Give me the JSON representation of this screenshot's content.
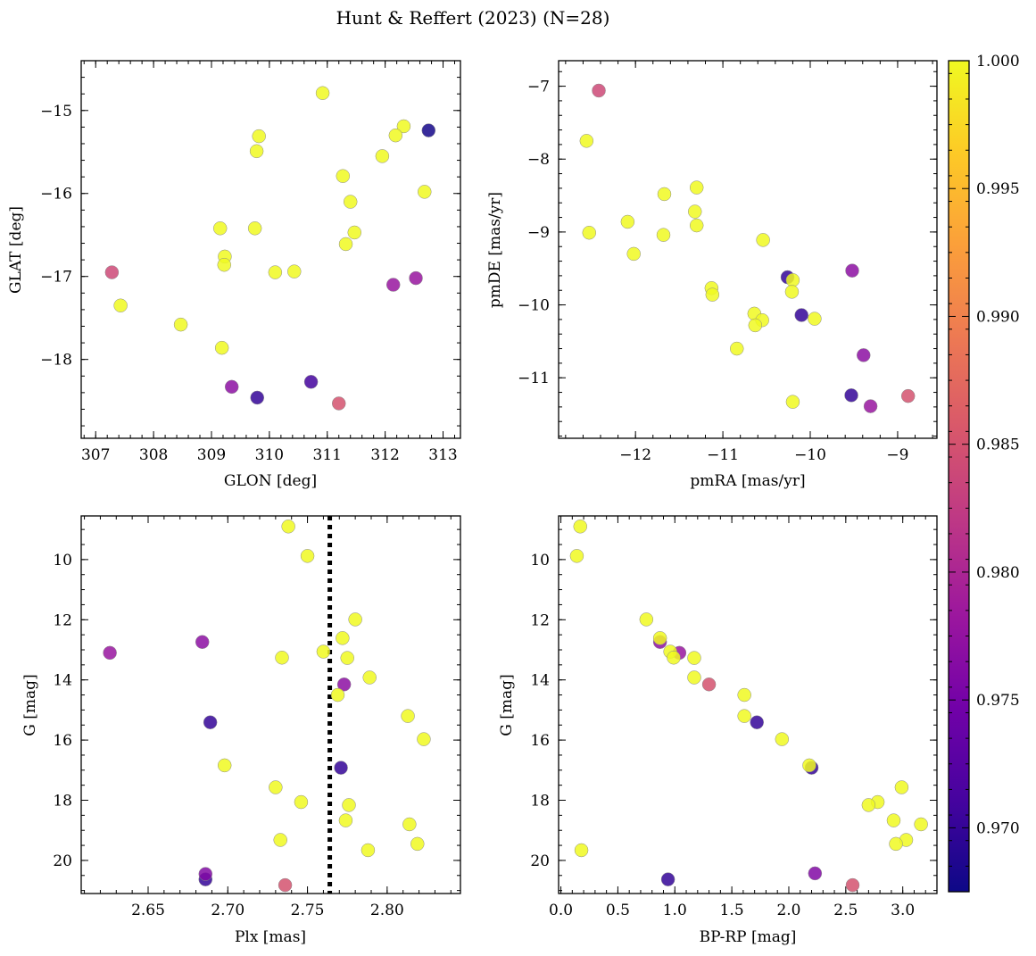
{
  "chart_data": [
    {
      "type": "scatter",
      "title": "Hunt & Reffert (2023) (N=28)",
      "xlabel": "GLON [deg]",
      "ylabel": "GLAT [deg]",
      "xlim": [
        306.75,
        313.3
      ],
      "ylim": [
        -18.95,
        -14.4
      ],
      "x_inverted": false,
      "y_inverted": false,
      "xticks": [
        307,
        308,
        309,
        310,
        311,
        312,
        313
      ],
      "yticks": [
        -18,
        -17,
        -16,
        -15
      ],
      "xtick_labels": [
        "307",
        "308",
        "309",
        "310",
        "311",
        "312",
        "313"
      ],
      "ytick_labels": [
        "−18",
        "−17",
        "−16",
        "−15"
      ],
      "points": [
        {
          "x": 310.92,
          "y": -14.79,
          "c": 1.0
        },
        {
          "x": 312.75,
          "y": -15.24,
          "c": 0.968
        },
        {
          "x": 312.32,
          "y": -15.19,
          "c": 1.0
        },
        {
          "x": 312.18,
          "y": -15.3,
          "c": 1.0
        },
        {
          "x": 309.82,
          "y": -15.31,
          "c": 1.0
        },
        {
          "x": 309.78,
          "y": -15.49,
          "c": 1.0
        },
        {
          "x": 311.95,
          "y": -15.55,
          "c": 1.0
        },
        {
          "x": 311.27,
          "y": -15.79,
          "c": 1.0
        },
        {
          "x": 312.68,
          "y": -15.98,
          "c": 1.0
        },
        {
          "x": 311.4,
          "y": -16.1,
          "c": 1.0
        },
        {
          "x": 309.15,
          "y": -16.42,
          "c": 1.0
        },
        {
          "x": 309.75,
          "y": -16.42,
          "c": 1.0
        },
        {
          "x": 311.47,
          "y": -16.47,
          "c": 1.0
        },
        {
          "x": 311.32,
          "y": -16.61,
          "c": 1.0
        },
        {
          "x": 309.23,
          "y": -16.76,
          "c": 1.0
        },
        {
          "x": 309.22,
          "y": -16.86,
          "c": 1.0
        },
        {
          "x": 310.1,
          "y": -16.95,
          "c": 1.0
        },
        {
          "x": 310.43,
          "y": -16.94,
          "c": 1.0
        },
        {
          "x": 307.28,
          "y": -16.95,
          "c": 0.984
        },
        {
          "x": 312.53,
          "y": -17.02,
          "c": 0.978
        },
        {
          "x": 312.14,
          "y": -17.1,
          "c": 0.978
        },
        {
          "x": 307.43,
          "y": -17.35,
          "c": 1.0
        },
        {
          "x": 308.47,
          "y": -17.58,
          "c": 1.0
        },
        {
          "x": 309.18,
          "y": -17.86,
          "c": 1.0
        },
        {
          "x": 310.72,
          "y": -18.27,
          "c": 0.971
        },
        {
          "x": 309.35,
          "y": -18.33,
          "c": 0.977
        },
        {
          "x": 309.79,
          "y": -18.46,
          "c": 0.97
        },
        {
          "x": 311.2,
          "y": -18.53,
          "c": 0.985
        }
      ]
    },
    {
      "type": "scatter",
      "xlabel": "pmRA [mas/yr]",
      "ylabel": "pmDE [mas/yr]",
      "xlim": [
        -12.88,
        -8.55
      ],
      "ylim": [
        -11.83,
        -6.65
      ],
      "x_inverted": false,
      "y_inverted": false,
      "xticks": [
        -12,
        -11,
        -10,
        -9
      ],
      "yticks": [
        -11,
        -10,
        -9,
        -8,
        -7
      ],
      "xtick_labels": [
        "−12",
        "−11",
        "−10",
        "−9"
      ],
      "ytick_labels": [
        "−11",
        "−10",
        "−9",
        "−8",
        "−7"
      ],
      "points": [
        {
          "x": -12.42,
          "y": -7.06,
          "c": 0.984
        },
        {
          "x": -12.56,
          "y": -7.75,
          "c": 1.0
        },
        {
          "x": -11.3,
          "y": -8.39,
          "c": 1.0
        },
        {
          "x": -11.67,
          "y": -8.48,
          "c": 1.0
        },
        {
          "x": -11.32,
          "y": -8.72,
          "c": 1.0
        },
        {
          "x": -12.09,
          "y": -8.86,
          "c": 1.0
        },
        {
          "x": -11.3,
          "y": -8.91,
          "c": 1.0
        },
        {
          "x": -12.53,
          "y": -9.01,
          "c": 1.0
        },
        {
          "x": -11.68,
          "y": -9.04,
          "c": 1.0
        },
        {
          "x": -10.54,
          "y": -9.11,
          "c": 1.0
        },
        {
          "x": -12.02,
          "y": -9.3,
          "c": 1.0
        },
        {
          "x": -9.52,
          "y": -9.53,
          "c": 0.977
        },
        {
          "x": -10.26,
          "y": -9.62,
          "c": 0.97
        },
        {
          "x": -10.2,
          "y": -9.66,
          "c": 1.0
        },
        {
          "x": -11.13,
          "y": -9.77,
          "c": 1.0
        },
        {
          "x": -10.21,
          "y": -9.82,
          "c": 1.0
        },
        {
          "x": -11.12,
          "y": -9.86,
          "c": 1.0
        },
        {
          "x": -10.64,
          "y": -10.12,
          "c": 1.0
        },
        {
          "x": -10.1,
          "y": -10.14,
          "c": 0.97
        },
        {
          "x": -9.95,
          "y": -10.19,
          "c": 1.0
        },
        {
          "x": -10.55,
          "y": -10.21,
          "c": 1.0
        },
        {
          "x": -10.63,
          "y": -10.28,
          "c": 1.0
        },
        {
          "x": -10.84,
          "y": -10.6,
          "c": 1.0
        },
        {
          "x": -9.39,
          "y": -10.69,
          "c": 0.977
        },
        {
          "x": -9.53,
          "y": -11.24,
          "c": 0.97
        },
        {
          "x": -8.88,
          "y": -11.25,
          "c": 0.985
        },
        {
          "x": -10.2,
          "y": -11.33,
          "c": 1.0
        },
        {
          "x": -9.31,
          "y": -11.39,
          "c": 0.978
        }
      ]
    },
    {
      "type": "scatter",
      "xlabel": "Plx [mas]",
      "ylabel": "G [mag]",
      "xlim": [
        2.608,
        2.846
      ],
      "ylim": [
        21.1,
        8.55
      ],
      "x_inverted": false,
      "y_inverted": true,
      "vline": {
        "x": 2.764,
        "style": "dotted"
      },
      "xticks": [
        2.65,
        2.7,
        2.75,
        2.8
      ],
      "yticks": [
        10,
        12,
        14,
        16,
        18,
        20
      ],
      "xtick_labels": [
        "2.65",
        "2.70",
        "2.75",
        "2.80"
      ],
      "ytick_labels": [
        "10",
        "12",
        "14",
        "16",
        "18",
        "20"
      ],
      "points": [
        {
          "x": 2.738,
          "y": 8.9,
          "c": 1.0
        },
        {
          "x": 2.75,
          "y": 9.88,
          "c": 1.0
        },
        {
          "x": 2.78,
          "y": 11.99,
          "c": 1.0
        },
        {
          "x": 2.772,
          "y": 12.61,
          "c": 1.0
        },
        {
          "x": 2.684,
          "y": 12.74,
          "c": 0.977
        },
        {
          "x": 2.76,
          "y": 13.06,
          "c": 1.0
        },
        {
          "x": 2.626,
          "y": 13.1,
          "c": 0.978
        },
        {
          "x": 2.734,
          "y": 13.26,
          "c": 1.0
        },
        {
          "x": 2.775,
          "y": 13.27,
          "c": 1.0
        },
        {
          "x": 2.789,
          "y": 13.92,
          "c": 1.0
        },
        {
          "x": 2.773,
          "y": 14.15,
          "c": 0.977
        },
        {
          "x": 2.769,
          "y": 14.5,
          "c": 1.0
        },
        {
          "x": 2.813,
          "y": 15.2,
          "c": 1.0
        },
        {
          "x": 2.689,
          "y": 15.41,
          "c": 0.97
        },
        {
          "x": 2.823,
          "y": 15.97,
          "c": 1.0
        },
        {
          "x": 2.698,
          "y": 16.84,
          "c": 1.0
        },
        {
          "x": 2.771,
          "y": 16.92,
          "c": 0.97
        },
        {
          "x": 2.73,
          "y": 17.57,
          "c": 1.0
        },
        {
          "x": 2.746,
          "y": 18.06,
          "c": 1.0
        },
        {
          "x": 2.776,
          "y": 18.16,
          "c": 1.0
        },
        {
          "x": 2.774,
          "y": 18.67,
          "c": 1.0
        },
        {
          "x": 2.814,
          "y": 18.8,
          "c": 1.0
        },
        {
          "x": 2.733,
          "y": 19.32,
          "c": 1.0
        },
        {
          "x": 2.819,
          "y": 19.45,
          "c": 1.0
        },
        {
          "x": 2.788,
          "y": 19.66,
          "c": 1.0
        },
        {
          "x": 2.686,
          "y": 20.45,
          "c": 0.976
        },
        {
          "x": 2.686,
          "y": 20.63,
          "c": 0.97
        },
        {
          "x": 2.736,
          "y": 20.82,
          "c": 0.985
        }
      ]
    },
    {
      "type": "scatter",
      "xlabel": "BP-RP [mag]",
      "ylabel": "G [mag]",
      "xlim": [
        -0.02,
        3.3
      ],
      "ylim": [
        21.1,
        8.55
      ],
      "x_inverted": false,
      "y_inverted": true,
      "xticks": [
        0.0,
        0.5,
        1.0,
        1.5,
        2.0,
        2.5,
        3.0
      ],
      "yticks": [
        10,
        12,
        14,
        16,
        18,
        20
      ],
      "xtick_labels": [
        "0.0",
        "0.5",
        "1.0",
        "1.5",
        "2.0",
        "2.5",
        "3.0"
      ],
      "ytick_labels": [
        "10",
        "12",
        "14",
        "16",
        "18",
        "20"
      ],
      "points": [
        {
          "x": 0.17,
          "y": 8.9,
          "c": 1.0
        },
        {
          "x": 0.14,
          "y": 9.88,
          "c": 1.0
        },
        {
          "x": 0.75,
          "y": 11.99,
          "c": 1.0
        },
        {
          "x": 0.87,
          "y": 12.61,
          "c": 1.0
        },
        {
          "x": 0.87,
          "y": 12.74,
          "c": 0.977
        },
        {
          "x": 0.96,
          "y": 13.06,
          "c": 1.0
        },
        {
          "x": 1.04,
          "y": 13.1,
          "c": 0.978
        },
        {
          "x": 0.99,
          "y": 13.26,
          "c": 1.0
        },
        {
          "x": 1.17,
          "y": 13.27,
          "c": 1.0
        },
        {
          "x": 1.17,
          "y": 13.92,
          "c": 1.0
        },
        {
          "x": 1.3,
          "y": 14.15,
          "c": 0.985
        },
        {
          "x": 1.61,
          "y": 14.5,
          "c": 1.0
        },
        {
          "x": 1.61,
          "y": 15.2,
          "c": 1.0
        },
        {
          "x": 1.72,
          "y": 15.41,
          "c": 0.97
        },
        {
          "x": 1.94,
          "y": 15.97,
          "c": 1.0
        },
        {
          "x": 2.2,
          "y": 16.92,
          "c": 0.97
        },
        {
          "x": 2.18,
          "y": 16.84,
          "c": 1.0
        },
        {
          "x": 2.99,
          "y": 17.57,
          "c": 1.0
        },
        {
          "x": 2.78,
          "y": 18.06,
          "c": 1.0
        },
        {
          "x": 2.7,
          "y": 18.16,
          "c": 1.0
        },
        {
          "x": 2.92,
          "y": 18.67,
          "c": 1.0
        },
        {
          "x": 3.16,
          "y": 18.8,
          "c": 1.0
        },
        {
          "x": 3.03,
          "y": 19.32,
          "c": 1.0
        },
        {
          "x": 2.94,
          "y": 19.45,
          "c": 1.0
        },
        {
          "x": 0.18,
          "y": 19.66,
          "c": 1.0
        },
        {
          "x": 2.23,
          "y": 20.43,
          "c": 0.976
        },
        {
          "x": 0.94,
          "y": 20.63,
          "c": 0.97
        },
        {
          "x": 2.56,
          "y": 20.82,
          "c": 0.985
        }
      ]
    }
  ],
  "colorbar": {
    "cmap": "plasma",
    "vmin": 0.9675,
    "vmax": 1.0,
    "ticks": [
      0.97,
      0.975,
      0.98,
      0.985,
      0.99,
      0.995,
      1.0
    ],
    "tick_labels": [
      "0.970",
      "0.975",
      "0.980",
      "0.985",
      "0.990",
      "0.995",
      "1.000"
    ]
  },
  "colors": {
    "plasma": [
      "#0d0887",
      "#46039f",
      "#7201a8",
      "#9c179e",
      "#bd3786",
      "#d8576b",
      "#ed7953",
      "#fb9f3a",
      "#fdca26",
      "#f0f921"
    ]
  }
}
